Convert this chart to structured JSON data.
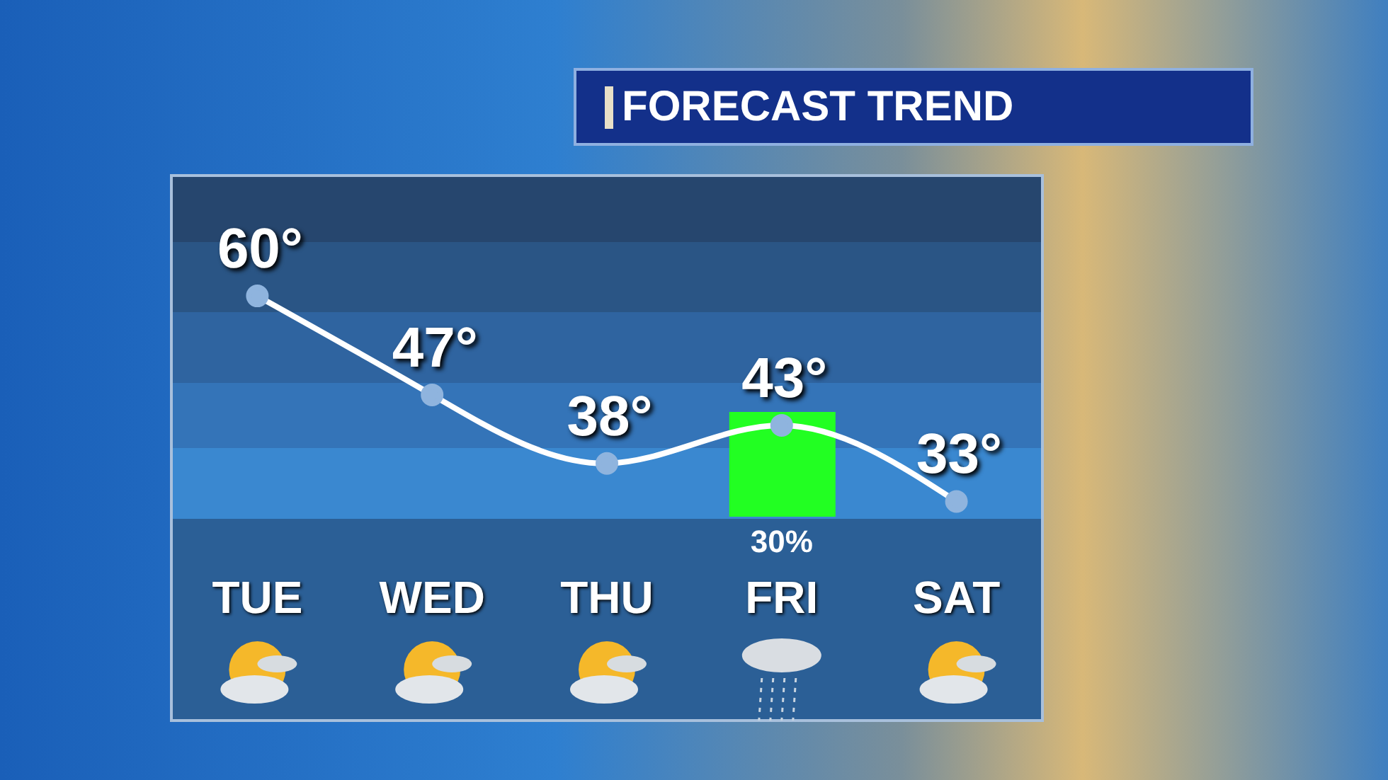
{
  "chart_data": {
    "type": "line",
    "title": "FORECAST TREND",
    "categories": [
      "TUE",
      "WED",
      "THU",
      "FRI",
      "SAT"
    ],
    "series": [
      {
        "color": "#ffffff",
        "values": [
          60,
          47,
          38,
          43,
          33
        ],
        "value_labels": [
          "60°",
          "47°",
          "38°",
          "43°",
          "33°"
        ]
      }
    ],
    "annotations": [
      "30%"
    ],
    "marker": "circle"
  }
}
